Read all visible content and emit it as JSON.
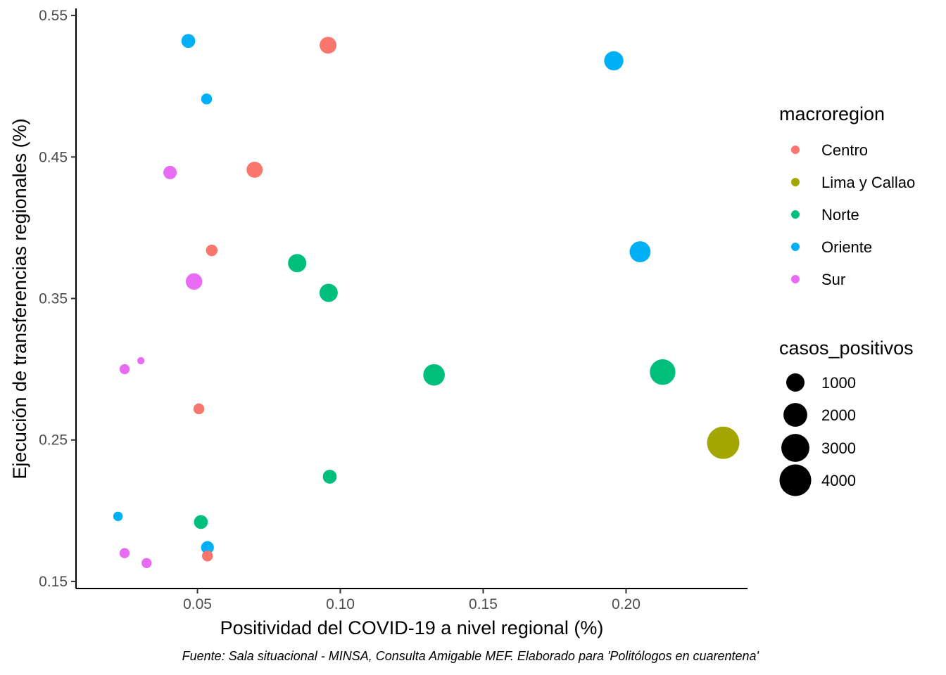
{
  "chart_data": {
    "type": "scatter",
    "title": "",
    "xlabel": "Positividad del COVID-19 a nivel regional (%)",
    "ylabel": "Ejecución de transferencias regionales (%)",
    "caption": "Fuente: Sala situacional - MINSA, Consulta Amigable MEF. Elaborado para 'Politólogos en cuarentena'",
    "xlim": [
      0.0075,
      0.2425
    ],
    "ylim": [
      0.145,
      0.555
    ],
    "x_ticks": [
      0.05,
      0.1,
      0.15,
      0.2
    ],
    "x_tick_labels": [
      "0.05",
      "0.10",
      "0.15",
      "0.20"
    ],
    "y_ticks": [
      0.15,
      0.25,
      0.35,
      0.45,
      0.55
    ],
    "y_tick_labels": [
      "0.15",
      "0.25",
      "0.35",
      "0.45",
      "0.55"
    ],
    "grid": false,
    "legend_position": "right",
    "color_legend": {
      "title": "macroregion",
      "entries": [
        {
          "label": "Centro",
          "color": "#F8766D"
        },
        {
          "label": "Lima y Callao",
          "color": "#A3A500"
        },
        {
          "label": "Norte",
          "color": "#00BF7D"
        },
        {
          "label": "Oriente",
          "color": "#00B0F6"
        },
        {
          "label": "Sur",
          "color": "#E76BF3"
        }
      ]
    },
    "size_legend": {
      "title": "casos_positivos",
      "entries": [
        {
          "label": "1000",
          "value": 1000
        },
        {
          "label": "2000",
          "value": 2000
        },
        {
          "label": "3000",
          "value": 3000
        },
        {
          "label": "4000",
          "value": 4000
        }
      ]
    },
    "points": [
      {
        "macroregion": "Oriente",
        "x": 0.0468,
        "y": 0.532,
        "casos_positivos": 450
      },
      {
        "macroregion": "Centro",
        "x": 0.0957,
        "y": 0.529,
        "casos_positivos": 800
      },
      {
        "macroregion": "Oriente",
        "x": 0.1957,
        "y": 0.518,
        "casos_positivos": 1150
      },
      {
        "macroregion": "Oriente",
        "x": 0.0532,
        "y": 0.491,
        "casos_positivos": 200
      },
      {
        "macroregion": "Centro",
        "x": 0.07,
        "y": 0.441,
        "casos_positivos": 700
      },
      {
        "macroregion": "Sur",
        "x": 0.0404,
        "y": 0.439,
        "casos_positivos": 400
      },
      {
        "macroregion": "Centro",
        "x": 0.055,
        "y": 0.384,
        "casos_positivos": 250
      },
      {
        "macroregion": "Oriente",
        "x": 0.2049,
        "y": 0.383,
        "casos_positivos": 1450
      },
      {
        "macroregion": "Norte",
        "x": 0.0849,
        "y": 0.375,
        "casos_positivos": 1000
      },
      {
        "macroregion": "Sur",
        "x": 0.0488,
        "y": 0.362,
        "casos_positivos": 750
      },
      {
        "macroregion": "Norte",
        "x": 0.0959,
        "y": 0.354,
        "casos_positivos": 1000
      },
      {
        "macroregion": "Sur",
        "x": 0.0302,
        "y": 0.306,
        "casos_positivos": 30
      },
      {
        "macroregion": "Sur",
        "x": 0.0245,
        "y": 0.3,
        "casos_positivos": 150
      },
      {
        "macroregion": "Norte",
        "x": 0.2128,
        "y": 0.298,
        "casos_positivos": 2400
      },
      {
        "macroregion": "Norte",
        "x": 0.1328,
        "y": 0.296,
        "casos_positivos": 1550
      },
      {
        "macroregion": "Centro",
        "x": 0.0505,
        "y": 0.272,
        "casos_positivos": 200
      },
      {
        "macroregion": "Lima y Callao",
        "x": 0.234,
        "y": 0.248,
        "casos_positivos": 4200
      },
      {
        "macroregion": "Norte",
        "x": 0.0963,
        "y": 0.224,
        "casos_positivos": 450
      },
      {
        "macroregion": "Oriente",
        "x": 0.0222,
        "y": 0.196,
        "casos_positivos": 120
      },
      {
        "macroregion": "Norte",
        "x": 0.0512,
        "y": 0.192,
        "casos_positivos": 450
      },
      {
        "macroregion": "Oriente",
        "x": 0.0535,
        "y": 0.174,
        "casos_positivos": 350
      },
      {
        "macroregion": "Centro",
        "x": 0.0535,
        "y": 0.168,
        "casos_positivos": 200
      },
      {
        "macroregion": "Sur",
        "x": 0.0245,
        "y": 0.17,
        "casos_positivos": 150
      },
      {
        "macroregion": "Sur",
        "x": 0.0322,
        "y": 0.163,
        "casos_positivos": 150
      }
    ]
  }
}
